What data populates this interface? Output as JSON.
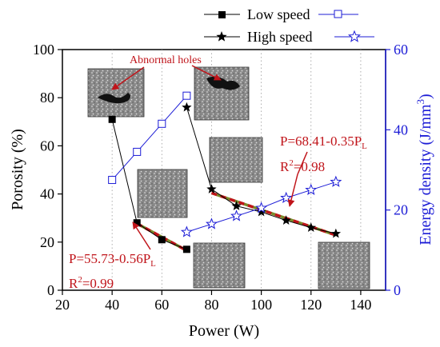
{
  "chart_data": {
    "type": "line",
    "title": "",
    "xlabel": "Power (W)",
    "ylabel_left": "Porosity (%)",
    "ylabel_right_main": "Energy density (J/mm",
    "ylabel_right_sup": "3",
    "ylabel_right_end": ")",
    "xlim": [
      20,
      150
    ],
    "ylim_left": [
      0,
      100
    ],
    "ylim_right": [
      0,
      60
    ],
    "x_ticks": [
      20,
      40,
      60,
      80,
      100,
      120,
      140
    ],
    "y_left_ticks": [
      0,
      20,
      40,
      60,
      80,
      100
    ],
    "y_right_ticks": [
      0,
      20,
      40,
      60
    ],
    "grid": "vertical-dotted",
    "legend_position": "top-right",
    "series": [
      {
        "name": "Low speed",
        "axis": "left",
        "marker": "filled-square",
        "color": "#000000",
        "x": [
          40,
          50,
          60,
          70
        ],
        "y": [
          71,
          28,
          21,
          17
        ]
      },
      {
        "name": "High speed",
        "axis": "left",
        "marker": "filled-star",
        "color": "#000000",
        "x": [
          70,
          80,
          90,
          100,
          110,
          120,
          130
        ],
        "y": [
          76,
          42,
          35,
          32.5,
          29,
          26,
          23.5
        ]
      },
      {
        "name": "Low speed",
        "axis": "right",
        "marker": "open-square",
        "color": "#1c1cd6",
        "x": [
          40,
          50,
          60,
          70
        ],
        "y": [
          27.5,
          34.5,
          41.5,
          48.5
        ]
      },
      {
        "name": "High speed",
        "axis": "right",
        "marker": "open-star",
        "color": "#1c1cd6",
        "x": [
          70,
          80,
          90,
          100,
          110,
          120,
          130
        ],
        "y": [
          14.5,
          16.5,
          18.5,
          20.5,
          23,
          25,
          27
        ]
      }
    ],
    "fits": [
      {
        "from_x": 50,
        "to_x": 70,
        "from_y": 27.7,
        "to_y": 16.5,
        "color": "#c0141a",
        "style": "dashed",
        "axis": "left"
      },
      {
        "from_x": 80,
        "to_x": 130,
        "from_y": 40.4,
        "to_y": 22.9,
        "color": "#c0141a",
        "style": "dashed",
        "axis": "left"
      }
    ],
    "annotations": {
      "abnormal_holes": "Abnormal holes",
      "eq_low_main": "P=55.73-0.56P",
      "eq_low_sub": "L",
      "r2_low_main": "R",
      "r2_low_sup": "2",
      "r2_low_end": "=0.99",
      "eq_high_main": "P=68.41-0.35P",
      "eq_high_sub": "L",
      "r2_high_main": "R",
      "r2_high_sup": "2",
      "r2_high_end": "=0.98"
    },
    "colors": {
      "axis": "#000000",
      "right_axis": "#1c1cd6",
      "annotation": "#c0141a"
    }
  }
}
